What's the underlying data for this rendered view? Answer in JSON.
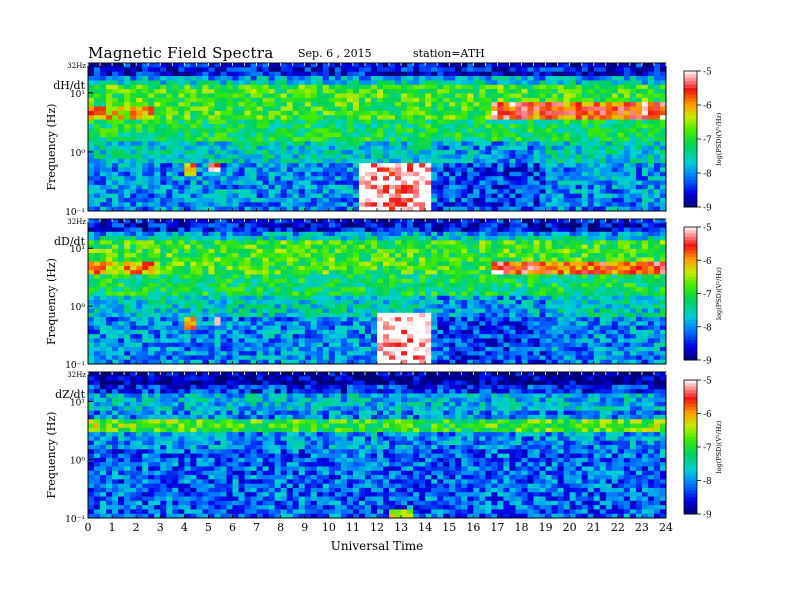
{
  "header": {
    "title": "Magnetic  Field  Spectra",
    "date": "Sep. 6  , 2015",
    "station": "station=ATH"
  },
  "chart_data": [
    {
      "type": "heatmap",
      "panel_label": "dH/dt",
      "ylabel": "Frequency  (Hz)",
      "xlabel": "",
      "top_label": "32Hz",
      "y_ticks": [
        "10¹",
        "10⁰",
        "10⁻¹"
      ],
      "x_ticks": [],
      "x": {
        "scale": "linear",
        "range": [
          0,
          24
        ]
      },
      "y": {
        "scale": "log",
        "range": [
          0.1,
          32
        ]
      },
      "colorbar": {
        "ticks": [
          "-5",
          "-6",
          "-7",
          "-8",
          "-9"
        ],
        "range": [
          -9,
          -5
        ],
        "label": "log(PSD)(V²/Hz)"
      },
      "features": [
        {
          "name": "broadband enhancement",
          "t_start": 11.3,
          "t_end": 14.3,
          "f_low": 0.1,
          "f_high": 0.7,
          "level": -5.2
        },
        {
          "name": "Pc1 burst",
          "t_start": 3.9,
          "t_end": 4.5,
          "f_low": 0.38,
          "f_high": 0.6,
          "level": -6.2
        },
        {
          "name": "Pc1 burst",
          "t_start": 5.1,
          "t_end": 5.4,
          "f_low": 0.45,
          "f_high": 0.7,
          "level": -5.6
        },
        {
          "name": "Schumann band",
          "t_start": 16.7,
          "t_end": 24,
          "f_low": 3.5,
          "f_high": 6.5,
          "level": -5.8
        },
        {
          "name": "Schumann band",
          "t_start": 0,
          "t_end": 2.8,
          "f_low": 3.5,
          "f_high": 5.5,
          "level": -6.3
        }
      ]
    },
    {
      "type": "heatmap",
      "panel_label": "dD/dt",
      "ylabel": "Frequency  (Hz)",
      "xlabel": "",
      "top_label": "32Hz",
      "y_ticks": [
        "10¹",
        "10⁰",
        "10⁻¹"
      ],
      "x_ticks": [],
      "x": {
        "scale": "linear",
        "range": [
          0,
          24
        ]
      },
      "y": {
        "scale": "log",
        "range": [
          0.1,
          32
        ]
      },
      "colorbar": {
        "ticks": [
          "-5",
          "-6",
          "-7",
          "-8",
          "-9"
        ],
        "range": [
          -9,
          -5
        ],
        "label": "log(PSD)(V²/Hz)"
      },
      "features": [
        {
          "name": "broadband enhancement",
          "t_start": 12.0,
          "t_end": 14.3,
          "f_low": 0.1,
          "f_high": 0.8,
          "level": -5.1
        },
        {
          "name": "Pc1 burst",
          "t_start": 3.9,
          "t_end": 4.6,
          "f_low": 0.38,
          "f_high": 0.6,
          "level": -5.8
        },
        {
          "name": "Pc1 burst",
          "t_start": 5.2,
          "t_end": 5.4,
          "f_low": 0.45,
          "f_high": 0.7,
          "level": -5.6
        },
        {
          "name": "Schumann band",
          "t_start": 16.7,
          "t_end": 24,
          "f_low": 3.5,
          "f_high": 6.0,
          "level": -5.8
        },
        {
          "name": "Schumann band",
          "t_start": 0,
          "t_end": 2.8,
          "f_low": 3.5,
          "f_high": 5.5,
          "level": -6.2
        }
      ]
    },
    {
      "type": "heatmap",
      "panel_label": "dZ/dt",
      "ylabel": "Frequency  (Hz)",
      "xlabel": "Universal  Time",
      "top_label": "32Hz",
      "y_ticks": [
        "10¹",
        "10⁰",
        "10⁻¹"
      ],
      "x_ticks": [
        "0",
        "1",
        "2",
        "3",
        "4",
        "5",
        "6",
        "7",
        "8",
        "9",
        "10",
        "11",
        "12",
        "13",
        "14",
        "15",
        "16",
        "17",
        "18",
        "19",
        "20",
        "21",
        "22",
        "23",
        "24"
      ],
      "x": {
        "scale": "linear",
        "range": [
          0,
          24
        ]
      },
      "y": {
        "scale": "log",
        "range": [
          0.1,
          32
        ]
      },
      "colorbar": {
        "ticks": [
          "-5",
          "-6",
          "-7",
          "-8",
          "-9"
        ],
        "range": [
          -9,
          -5
        ],
        "label": "log(PSD)(V²/Hz)"
      },
      "features": [
        {
          "name": "Schumann band",
          "t_start": 0,
          "t_end": 24,
          "f_low": 3.0,
          "f_high": 5.0,
          "level": -7.0
        },
        {
          "name": "broadband enhancement",
          "t_start": 12.5,
          "t_end": 13.5,
          "f_low": 0.1,
          "f_high": 0.13,
          "level": -6.5
        }
      ]
    }
  ]
}
